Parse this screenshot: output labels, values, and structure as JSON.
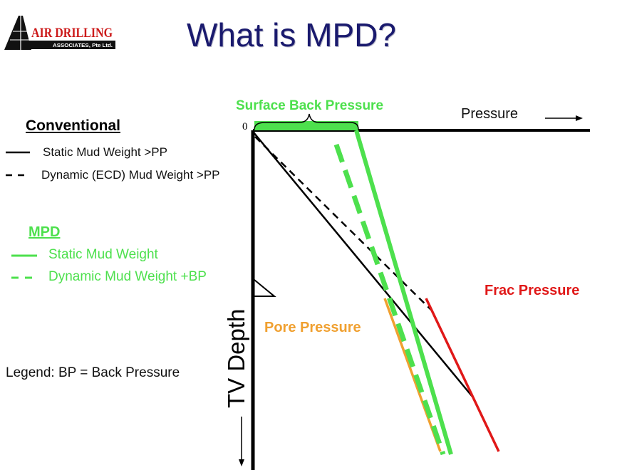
{
  "title": "What is MPD?",
  "logo": {
    "line1": "AIR DRILLING",
    "line2": "ASSOCIATES, Pte Ltd.",
    "icon": "drilling-rig-icon",
    "brand_color": "#cc1a1a"
  },
  "conventional": {
    "heading": "Conventional",
    "items": [
      {
        "label": "Static Mud Weight >PP",
        "style": "solid"
      },
      {
        "label": "Dynamic (ECD) Mud Weight >PP",
        "style": "dashed"
      }
    ]
  },
  "mpd": {
    "heading": "MPD",
    "items": [
      {
        "label": "Static Mud Weight",
        "style": "solid"
      },
      {
        "label": "Dynamic Mud Weight +BP",
        "style": "dashed"
      }
    ]
  },
  "legend_note": "Legend: BP = Back Pressure",
  "diagram": {
    "x_axis_label": "Pressure",
    "y_axis_label": "TV Depth",
    "origin_label": "0",
    "surface_back_pressure_label": "Surface Back Pressure",
    "frac_pressure_label": "Frac Pressure",
    "pore_pressure_label": "Pore Pressure"
  },
  "colors": {
    "title": "#1a1a6e",
    "mpd_green": "#4de04d",
    "frac_red": "#e01818",
    "pore_orange": "#f0a030",
    "conventional_black": "#000000"
  }
}
